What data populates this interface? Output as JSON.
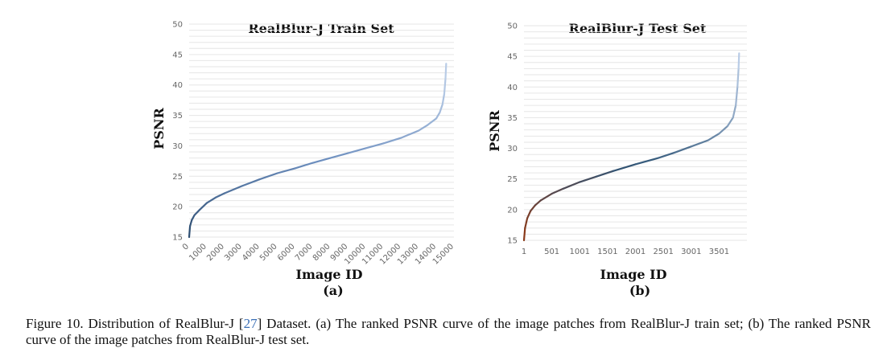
{
  "chart_data": [
    {
      "type": "line",
      "title": "RealBlur-J Train Set",
      "xlabel": "Image ID",
      "ylabel": "PSNR",
      "sublabel": "(a)",
      "ylim": [
        15,
        50
      ],
      "yticks": [
        15,
        20,
        25,
        30,
        35,
        40,
        45,
        50
      ],
      "xlim": [
        0,
        15000
      ],
      "xticks": [
        "0",
        "1000",
        "2000",
        "3000",
        "4000",
        "5000",
        "6000",
        "7000",
        "8000",
        "9000",
        "10000",
        "11000",
        "12000",
        "13000",
        "14000",
        "15000"
      ],
      "grid": true,
      "colors": [
        "#2f4f73",
        "#6d8fbf",
        "#b9cce6"
      ],
      "x": [
        0,
        50,
        150,
        300,
        600,
        1000,
        1500,
        2000,
        3000,
        4000,
        5000,
        6000,
        7000,
        8000,
        9000,
        10000,
        11000,
        12000,
        13000,
        13500,
        14000,
        14200,
        14350,
        14450,
        14520,
        14560
      ],
      "y": [
        15,
        16.8,
        17.8,
        18.6,
        19.5,
        20.6,
        21.5,
        22.2,
        23.4,
        24.5,
        25.5,
        26.3,
        27.2,
        28.0,
        28.8,
        29.6,
        30.4,
        31.3,
        32.5,
        33.4,
        34.5,
        35.5,
        36.8,
        38.5,
        41.0,
        43.5
      ]
    },
    {
      "type": "line",
      "title": "RealBlur-J Test Set",
      "xlabel": "Image ID",
      "ylabel": "PSNR",
      "sublabel": "(b)",
      "ylim": [
        15,
        50
      ],
      "yticks": [
        15,
        20,
        25,
        30,
        35,
        40,
        45,
        50
      ],
      "xlim": [
        1,
        4000
      ],
      "xticks": [
        "1",
        "501",
        "1001",
        "1501",
        "2001",
        "2501",
        "3001",
        "3501"
      ],
      "grid": true,
      "colors": [
        "#8a3a1a",
        "#2f5577",
        "#b9cce6"
      ],
      "x": [
        1,
        20,
        60,
        120,
        200,
        300,
        500,
        700,
        1000,
        1300,
        1600,
        2000,
        2400,
        2700,
        3000,
        3300,
        3500,
        3650,
        3750,
        3800,
        3830,
        3850,
        3860
      ],
      "y": [
        15,
        17,
        18.6,
        19.8,
        20.7,
        21.5,
        22.6,
        23.4,
        24.5,
        25.4,
        26.3,
        27.4,
        28.4,
        29.3,
        30.3,
        31.3,
        32.4,
        33.6,
        35.0,
        37.0,
        40.0,
        43.0,
        45.5
      ]
    }
  ],
  "caption": {
    "prefix": "Figure 10.  Distribution of RealBlur-J [",
    "ref": "27",
    "suffix": "] Dataset.  (a) The ranked PSNR curve of the image patches from RealBlur-J train set; (b) The ranked PSNR curve of the image patches from RealBlur-J test set."
  }
}
